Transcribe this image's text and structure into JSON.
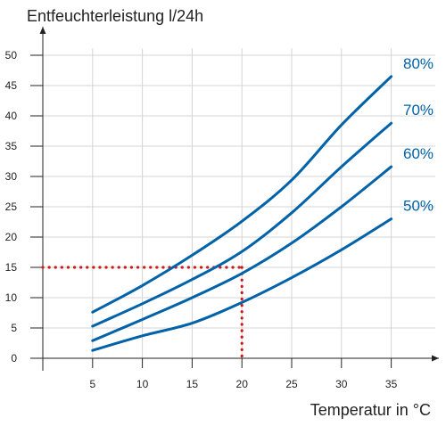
{
  "chart_data": {
    "type": "line",
    "ylabel": "Entfeuchterleistung l/24h",
    "xlabel": "Temperatur in °C",
    "xlim": [
      0,
      37.5
    ],
    "ylim": [
      0,
      52
    ],
    "x_ticks": [
      5,
      10,
      15,
      20,
      25,
      30,
      35
    ],
    "y_ticks": [
      0,
      5,
      10,
      15,
      20,
      25,
      30,
      35,
      40,
      45,
      50
    ],
    "grid": "vertical and horizontal, light gray",
    "legend": "series labels at right end of lines",
    "line_color": "#0062a8",
    "series": [
      {
        "name": "80%",
        "x": [
          5,
          10,
          15,
          20,
          25,
          30,
          35
        ],
        "values": [
          7.6,
          12,
          17,
          22.6,
          29.4,
          38.5,
          46.5
        ]
      },
      {
        "name": "70%",
        "x": [
          5,
          10,
          15,
          20,
          25,
          30,
          35
        ],
        "values": [
          5.3,
          9,
          13,
          17.6,
          24,
          31.6,
          38.8
        ]
      },
      {
        "name": "60%",
        "x": [
          5,
          10,
          15,
          20,
          25,
          30,
          35
        ],
        "values": [
          2.9,
          6.4,
          10,
          14,
          19,
          25,
          31.6
        ]
      },
      {
        "name": "50%",
        "x": [
          5,
          10,
          15,
          20,
          25,
          30,
          35
        ],
        "values": [
          1.3,
          3.7,
          5.8,
          9.2,
          13.3,
          17.9,
          23
        ]
      }
    ],
    "reference": {
      "x": 20,
      "y": 15,
      "color": "#cc1a1a"
    }
  }
}
